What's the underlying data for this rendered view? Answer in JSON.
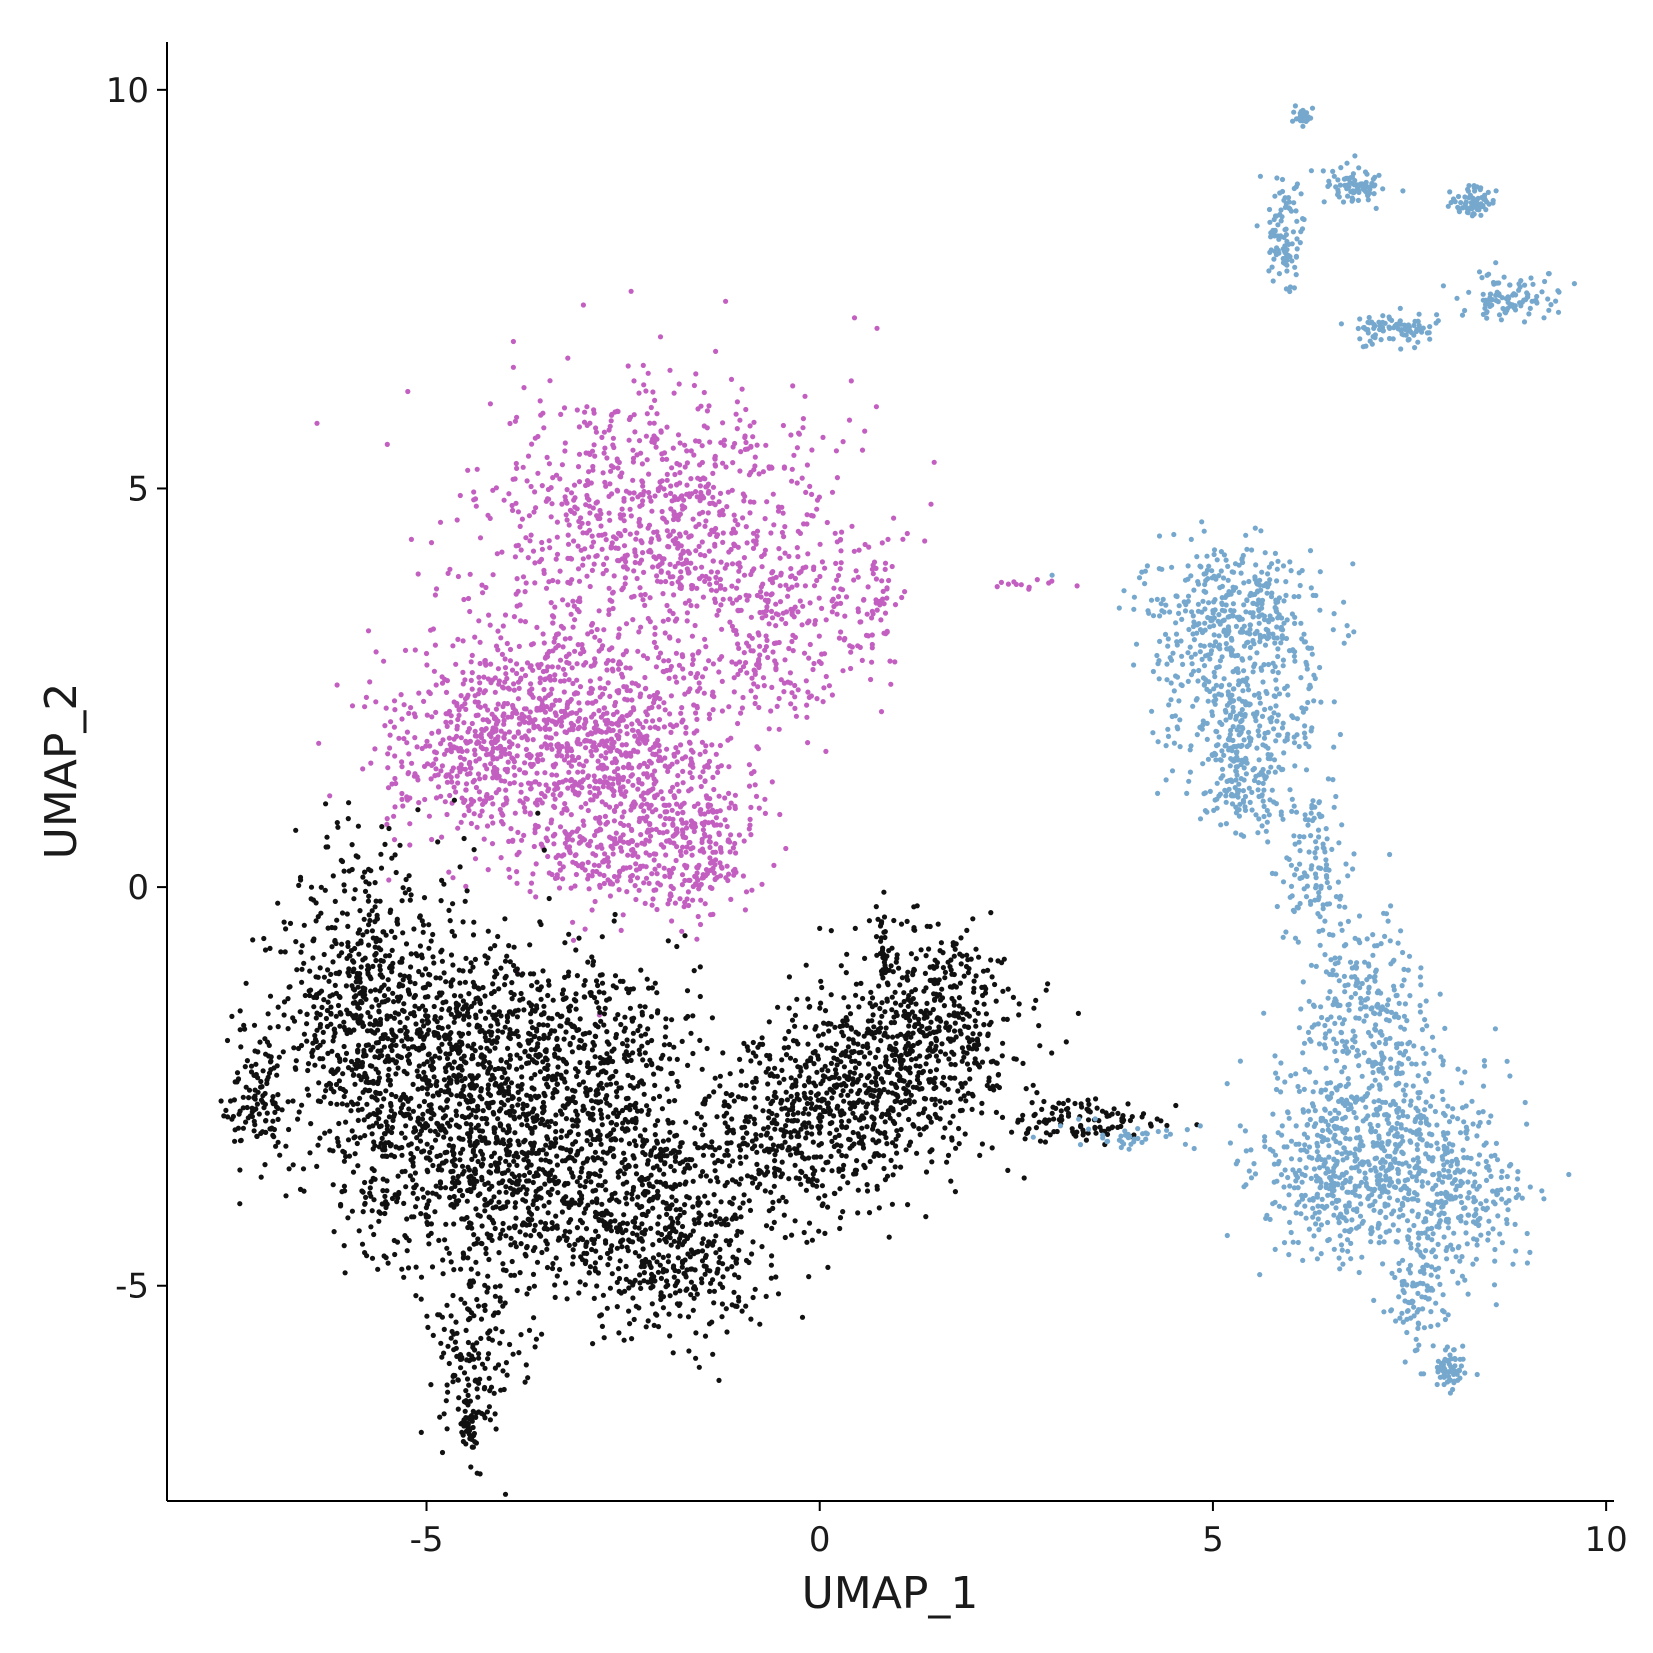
{
  "chart_data": {
    "type": "scatter",
    "title": "",
    "xlabel": "UMAP_1",
    "ylabel": "UMAP_2",
    "xlim": [
      -8.3,
      10.1
    ],
    "ylim": [
      -7.7,
      10.6
    ],
    "xticks": [
      -5,
      0,
      5,
      10
    ],
    "yticks": [
      -5,
      0,
      5,
      10
    ],
    "legend": "none",
    "grid": false,
    "series": [
      {
        "color": "#C25FC0",
        "point_count_approx": 3000,
        "clusters": [
          {
            "cx": -2.0,
            "cy": 4.5,
            "sx": 1.1,
            "sy": 0.9,
            "n": 950
          },
          {
            "cx": -3.6,
            "cy": 2.0,
            "sx": 0.9,
            "sy": 0.75,
            "n": 650
          },
          {
            "cx": -2.5,
            "cy": 1.6,
            "sx": 0.8,
            "sy": 0.8,
            "n": 550
          },
          {
            "cx": -1.5,
            "cy": 0.5,
            "sx": 0.35,
            "sy": 0.45,
            "n": 180
          },
          {
            "cx": -2.6,
            "cy": 0.4,
            "sx": 0.6,
            "sy": 0.3,
            "n": 160
          },
          {
            "cx": -0.6,
            "cy": 3.0,
            "sx": 0.5,
            "sy": 0.6,
            "n": 160
          },
          {
            "cx": 0.6,
            "cy": 3.6,
            "sx": 0.25,
            "sy": 0.4,
            "n": 80
          },
          {
            "cx": -4.6,
            "cy": 1.7,
            "sx": 0.5,
            "sy": 0.6,
            "n": 170
          },
          {
            "cx": 2.6,
            "cy": 3.8,
            "sx": 0.25,
            "sy": 0.06,
            "n": 12
          }
        ]
      },
      {
        "color": "#111111",
        "point_count_approx": 4800,
        "clusters": [
          {
            "cx": -5.3,
            "cy": -2.2,
            "sx": 0.75,
            "sy": 1.1,
            "n": 900
          },
          {
            "cx": -4.0,
            "cy": -3.4,
            "sx": 0.7,
            "sy": 0.9,
            "n": 700
          },
          {
            "cx": -3.4,
            "cy": -1.9,
            "sx": 0.9,
            "sy": 0.55,
            "n": 500
          },
          {
            "cx": -2.4,
            "cy": -3.6,
            "sx": 0.8,
            "sy": 0.7,
            "n": 500
          },
          {
            "cx": -1.8,
            "cy": -4.7,
            "sx": 0.7,
            "sy": 0.45,
            "n": 300
          },
          {
            "cx": -0.3,
            "cy": -3.0,
            "sx": 0.8,
            "sy": 0.6,
            "n": 450
          },
          {
            "cx": 0.9,
            "cy": -2.3,
            "sx": 0.8,
            "sy": 0.6,
            "n": 550
          },
          {
            "cx": 1.5,
            "cy": -1.4,
            "sx": 0.45,
            "sy": 0.5,
            "n": 220
          },
          {
            "cx": -7.2,
            "cy": -2.6,
            "sx": 0.18,
            "sy": 0.45,
            "n": 120
          },
          {
            "cx": -6.0,
            "cy": -1.0,
            "sx": 0.35,
            "sy": 0.8,
            "n": 220
          },
          {
            "cx": -4.4,
            "cy": -5.9,
            "sx": 0.3,
            "sy": 0.6,
            "n": 150
          },
          {
            "cx": -4.45,
            "cy": -6.8,
            "sx": 0.06,
            "sy": 0.22,
            "n": 40
          },
          {
            "cx": 0.8,
            "cy": -0.7,
            "sx": 0.06,
            "sy": 0.25,
            "n": 30
          },
          {
            "cx": 3.3,
            "cy": -2.9,
            "sx": 0.55,
            "sy": 0.12,
            "n": 110
          }
        ]
      },
      {
        "color": "#76A8CE",
        "point_count_approx": 2600,
        "clusters": [
          {
            "cx": 5.3,
            "cy": 3.4,
            "sx": 0.55,
            "sy": 0.45,
            "n": 400
          },
          {
            "cx": 5.3,
            "cy": 2.2,
            "sx": 0.5,
            "sy": 0.5,
            "n": 250
          },
          {
            "cx": 5.4,
            "cy": 1.3,
            "sx": 0.3,
            "sy": 0.35,
            "n": 150
          },
          {
            "cx": 6.3,
            "cy": 0.3,
            "sx": 0.22,
            "sy": 0.5,
            "n": 120
          },
          {
            "cx": 6.9,
            "cy": -1.3,
            "sx": 0.4,
            "sy": 0.5,
            "n": 200
          },
          {
            "cx": 7.0,
            "cy": -3.0,
            "sx": 0.75,
            "sy": 0.6,
            "n": 550
          },
          {
            "cx": 8.1,
            "cy": -4.0,
            "sx": 0.45,
            "sy": 0.45,
            "n": 250
          },
          {
            "cx": 6.6,
            "cy": -3.9,
            "sx": 0.45,
            "sy": 0.4,
            "n": 230
          },
          {
            "cx": 7.6,
            "cy": -5.2,
            "sx": 0.2,
            "sy": 0.35,
            "n": 80
          },
          {
            "cx": 8.0,
            "cy": -6.0,
            "sx": 0.12,
            "sy": 0.15,
            "n": 60
          },
          {
            "cx": 4.1,
            "cy": -3.1,
            "sx": 0.5,
            "sy": 0.1,
            "n": 40
          },
          {
            "cx": 5.9,
            "cy": 8.2,
            "sx": 0.12,
            "sy": 0.35,
            "n": 100
          },
          {
            "cx": 6.8,
            "cy": 8.8,
            "sx": 0.2,
            "sy": 0.12,
            "n": 80
          },
          {
            "cx": 7.3,
            "cy": 7.0,
            "sx": 0.25,
            "sy": 0.1,
            "n": 90
          },
          {
            "cx": 8.3,
            "cy": 8.6,
            "sx": 0.15,
            "sy": 0.1,
            "n": 70
          },
          {
            "cx": 8.8,
            "cy": 7.4,
            "sx": 0.3,
            "sy": 0.15,
            "n": 100
          },
          {
            "cx": 6.1,
            "cy": 9.65,
            "sx": 0.06,
            "sy": 0.06,
            "n": 25
          }
        ]
      }
    ]
  }
}
